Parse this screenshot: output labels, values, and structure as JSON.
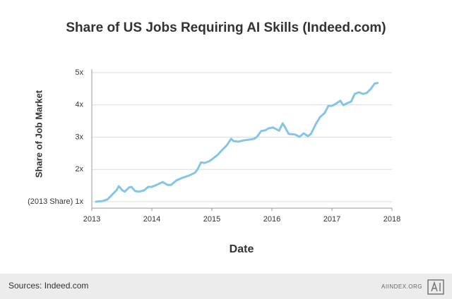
{
  "chart_data": {
    "type": "line",
    "title": "Share of US Jobs Requiring AI Skills (Indeed.com)",
    "x_label": "Date",
    "y_label": "Share of Job Market",
    "source": "Sources: Indeed.com",
    "brand": "AIINDEX.ORG",
    "xlim": [
      2013,
      2018
    ],
    "xticks": [
      2013,
      2014,
      2015,
      2016,
      2017,
      2018
    ],
    "ylim": [
      0.8,
      5.1
    ],
    "yticks": [
      {
        "value": 1,
        "label": "(2013 Share) 1x"
      },
      {
        "value": 2,
        "label": "2x"
      },
      {
        "value": 3,
        "label": "3x"
      },
      {
        "value": 4,
        "label": "4x"
      },
      {
        "value": 5,
        "label": "5x"
      }
    ],
    "grid": true,
    "x": [
      2013.07,
      2013.18,
      2013.26,
      2013.35,
      2013.41,
      2013.45,
      2013.51,
      2013.55,
      2013.62,
      2013.66,
      2013.72,
      2013.79,
      2013.87,
      2013.94,
      2014.0,
      2014.08,
      2014.18,
      2014.26,
      2014.32,
      2014.41,
      2014.51,
      2014.62,
      2014.72,
      2014.76,
      2014.82,
      2014.88,
      2014.95,
      2015.0,
      2015.09,
      2015.18,
      2015.25,
      2015.32,
      2015.36,
      2015.44,
      2015.53,
      2015.61,
      2015.71,
      2015.76,
      2015.82,
      2015.89,
      2015.94,
      2016.02,
      2016.12,
      2016.18,
      2016.22,
      2016.28,
      2016.39,
      2016.46,
      2016.53,
      2016.6,
      2016.65,
      2016.73,
      2016.8,
      2016.88,
      2016.94,
      2017.0,
      2017.07,
      2017.14,
      2017.19,
      2017.26,
      2017.32,
      2017.38,
      2017.45,
      2017.52,
      2017.58,
      2017.65,
      2017.71,
      2017.76
    ],
    "series": [
      {
        "color": "#86c5e4",
        "values": [
          1.0,
          1.02,
          1.07,
          1.24,
          1.35,
          1.48,
          1.35,
          1.31,
          1.44,
          1.46,
          1.33,
          1.31,
          1.35,
          1.46,
          1.46,
          1.52,
          1.61,
          1.52,
          1.52,
          1.66,
          1.74,
          1.81,
          1.9,
          2.0,
          2.22,
          2.2,
          2.25,
          2.31,
          2.44,
          2.62,
          2.75,
          2.95,
          2.88,
          2.86,
          2.9,
          2.92,
          2.95,
          3.03,
          3.19,
          3.21,
          3.27,
          3.3,
          3.2,
          3.43,
          3.3,
          3.1,
          3.08,
          3.01,
          3.12,
          3.03,
          3.1,
          3.4,
          3.62,
          3.75,
          3.97,
          3.97,
          4.04,
          4.13,
          3.99,
          4.06,
          4.1,
          4.34,
          4.39,
          4.34,
          4.37,
          4.5,
          4.66,
          4.68
        ]
      }
    ]
  }
}
